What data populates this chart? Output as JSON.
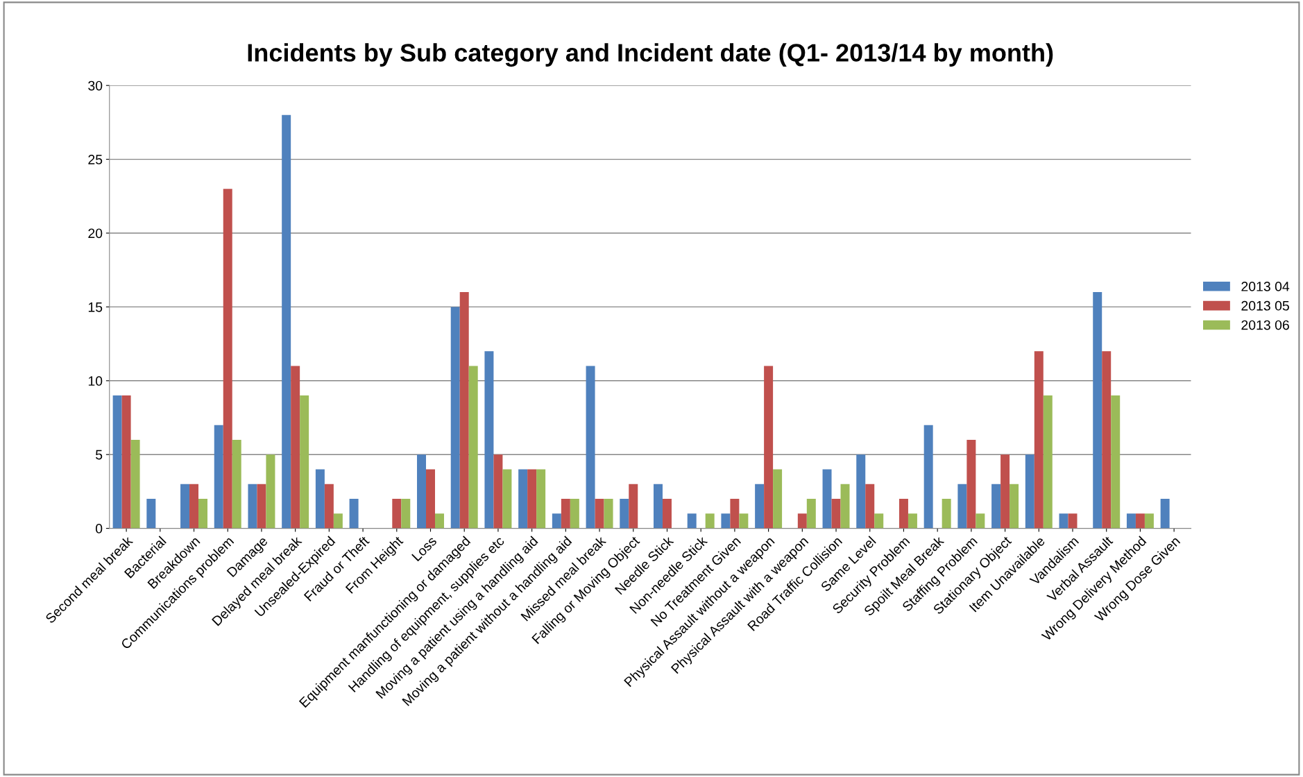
{
  "chart_data": {
    "type": "bar",
    "title": "Incidents by Sub category and Incident date (Q1- 2013/14 by month)",
    "categories": [
      "Second meal break",
      "Bacterial",
      "Breakdown",
      "Communications problem",
      "Damage",
      "Delayed meal break",
      "Unsealed-Expired",
      "Fraud or Theft",
      "From Height",
      "Loss",
      "Equipment manfunctioning or damaged",
      "Handling of equipment, supplies etc",
      "Moving a patient using a handling aid",
      "Moving a patient without a handling aid",
      "Missed meal break",
      "Falling or Moving Object",
      "Needle Stick",
      "Non-needle Stick",
      "No Treatment Given",
      "Physical Assault without a weapon",
      "Physical Assault with a weapon",
      "Road Traffic Collision",
      "Same Level",
      "Security Problem",
      "Spoilt Meal Break",
      "Staffing Problem",
      "Stationary Object",
      "Item Unavailable",
      "Vandalism",
      "Verbal Assault",
      "Wrong Delivery Method",
      "Wrong Dose Given"
    ],
    "series": [
      {
        "name": "2013 04",
        "color": "#4f81bd",
        "values": [
          9,
          2,
          3,
          7,
          3,
          28,
          4,
          2,
          null,
          5,
          15,
          12,
          4,
          1,
          11,
          2,
          3,
          1,
          1,
          3,
          null,
          4,
          5,
          null,
          7,
          3,
          3,
          5,
          1,
          16,
          1,
          2
        ]
      },
      {
        "name": "2013 05",
        "color": "#c0504d",
        "values": [
          9,
          null,
          3,
          23,
          3,
          11,
          3,
          null,
          2,
          4,
          16,
          5,
          4,
          2,
          2,
          3,
          2,
          null,
          2,
          11,
          1,
          2,
          3,
          2,
          null,
          6,
          5,
          12,
          1,
          12,
          1,
          null
        ]
      },
      {
        "name": "2013 06",
        "color": "#9bbb59",
        "values": [
          6,
          null,
          2,
          6,
          5,
          9,
          1,
          null,
          2,
          1,
          11,
          4,
          4,
          2,
          2,
          null,
          null,
          1,
          1,
          4,
          2,
          3,
          1,
          1,
          2,
          1,
          3,
          9,
          null,
          9,
          1,
          null
        ]
      }
    ],
    "ylim": [
      0,
      30
    ],
    "yticks": [
      0,
      5,
      10,
      15,
      20,
      25,
      30
    ],
    "grid": "y",
    "legend": "right"
  }
}
